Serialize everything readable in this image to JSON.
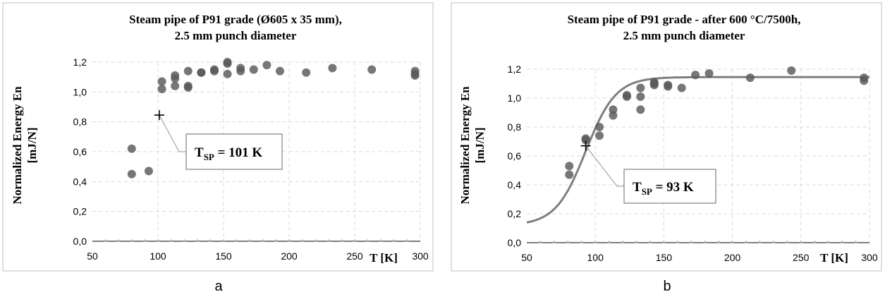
{
  "chart_data": [
    {
      "type": "scatter",
      "title_line1": "Steam pipe of P91 grade (Ø605 x 35 mm),",
      "title_line2": "2.5 mm punch diameter",
      "ylabel_line1": "Normalized  Energy  En",
      "ylabel_line2": "[mJ/N]",
      "xlabel": "T [K]",
      "caption": "a",
      "xlim": [
        50,
        300
      ],
      "ylim": [
        0.0,
        1.2
      ],
      "xticks": [
        50,
        100,
        150,
        200,
        250,
        300
      ],
      "yticks": [
        "0,0",
        "0,2",
        "0,4",
        "0,6",
        "0,8",
        "1,0",
        "1,2"
      ],
      "grid": true,
      "marker_color": "#595959",
      "points": [
        [
          80,
          0.62
        ],
        [
          80,
          0.45
        ],
        [
          93,
          0.47
        ],
        [
          103,
          1.07
        ],
        [
          103,
          1.02
        ],
        [
          113,
          1.11
        ],
        [
          113,
          1.09
        ],
        [
          113,
          1.04
        ],
        [
          123,
          1.14
        ],
        [
          123,
          1.03
        ],
        [
          123,
          1.04
        ],
        [
          133,
          1.13
        ],
        [
          133,
          1.13
        ],
        [
          143,
          1.15
        ],
        [
          143,
          1.14
        ],
        [
          153,
          1.19
        ],
        [
          153,
          1.12
        ],
        [
          153,
          1.2
        ],
        [
          163,
          1.16
        ],
        [
          163,
          1.14
        ],
        [
          173,
          1.15
        ],
        [
          183,
          1.18
        ],
        [
          193,
          1.14
        ],
        [
          213,
          1.13
        ],
        [
          233,
          1.16
        ],
        [
          263,
          1.15
        ],
        [
          296,
          1.14
        ],
        [
          296,
          1.12
        ],
        [
          296,
          1.11
        ]
      ],
      "transition_point": [
        101,
        0.845
      ],
      "annotation": {
        "prefix": "T",
        "sub": "SP",
        "suffix": " = 101 K"
      }
    },
    {
      "type": "scatter",
      "title_line1": "Steam pipe of P91 grade - after 600 °C/7500h,",
      "title_line2": "2.5 mm punch diameter",
      "ylabel_line1": "Normalized  Energy  En",
      "ylabel_line2": "[mJ/N]",
      "xlabel": "T [K]",
      "caption": "b",
      "xlim": [
        50,
        300
      ],
      "ylim": [
        0.0,
        1.2
      ],
      "xticks": [
        50,
        100,
        150,
        200,
        250,
        300
      ],
      "yticks": [
        "0,0",
        "0,2",
        "0,4",
        "0,6",
        "0,8",
        "1,0",
        "1,2"
      ],
      "grid": true,
      "marker_color": "#595959",
      "curve_color": "#7f7f7f",
      "points": [
        [
          81,
          0.53
        ],
        [
          81,
          0.47
        ],
        [
          93,
          0.72
        ],
        [
          93,
          0.71
        ],
        [
          103,
          0.8
        ],
        [
          103,
          0.74
        ],
        [
          113,
          0.92
        ],
        [
          113,
          0.88
        ],
        [
          123,
          1.02
        ],
        [
          123,
          1.01
        ],
        [
          133,
          1.07
        ],
        [
          133,
          1.01
        ],
        [
          133,
          0.92
        ],
        [
          143,
          1.11
        ],
        [
          143,
          1.09
        ],
        [
          143,
          1.1
        ],
        [
          153,
          1.09
        ],
        [
          153,
          1.08
        ],
        [
          163,
          1.07
        ],
        [
          173,
          1.16
        ],
        [
          183,
          1.17
        ],
        [
          213,
          1.14
        ],
        [
          243,
          1.19
        ],
        [
          296,
          1.14
        ],
        [
          296,
          1.12
        ]
      ],
      "fit_curve": {
        "lower": 0.12,
        "upper": 1.145,
        "t0": 93,
        "width": 22
      },
      "transition_point": [
        93,
        0.67
      ],
      "annotation": {
        "prefix": "T",
        "sub": "SP",
        "suffix": " = 93 K"
      }
    }
  ]
}
